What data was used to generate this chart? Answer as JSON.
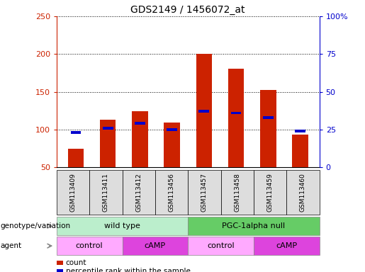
{
  "title": "GDS2149 / 1456072_at",
  "samples": [
    "GSM113409",
    "GSM113411",
    "GSM113412",
    "GSM113456",
    "GSM113457",
    "GSM113458",
    "GSM113459",
    "GSM113460"
  ],
  "count_values": [
    75,
    113,
    124,
    109,
    200,
    181,
    152,
    93
  ],
  "percentile_values": [
    23,
    26,
    29,
    25,
    37,
    36,
    33,
    24
  ],
  "ylim_left": [
    50,
    250
  ],
  "ylim_right": [
    0,
    100
  ],
  "yticks_left": [
    50,
    100,
    150,
    200,
    250
  ],
  "yticks_right": [
    0,
    25,
    50,
    75,
    100
  ],
  "ytick_labels_left": [
    "50",
    "100",
    "150",
    "200",
    "250"
  ],
  "ytick_labels_right": [
    "0",
    "25",
    "50",
    "75",
    "100%"
  ],
  "bar_color": "#cc2200",
  "percentile_color": "#0000cc",
  "background_color": "#ffffff",
  "grid_color": "#000000",
  "genotype_groups": [
    {
      "label": "wild type",
      "start": 0,
      "end": 4,
      "color": "#bbeecc"
    },
    {
      "label": "PGC-1alpha null",
      "start": 4,
      "end": 8,
      "color": "#66cc66"
    }
  ],
  "agent_groups": [
    {
      "label": "control",
      "start": 0,
      "end": 2,
      "color": "#ffaaff"
    },
    {
      "label": "cAMP",
      "start": 2,
      "end": 4,
      "color": "#dd44dd"
    },
    {
      "label": "control",
      "start": 4,
      "end": 6,
      "color": "#ffaaff"
    },
    {
      "label": "cAMP",
      "start": 6,
      "end": 8,
      "color": "#dd44dd"
    }
  ],
  "legend_items": [
    {
      "label": "count",
      "color": "#cc2200"
    },
    {
      "label": "percentile rank within the sample",
      "color": "#0000cc"
    }
  ],
  "label_genotype": "genotype/variation",
  "label_agent": "agent",
  "bar_width": 0.5,
  "tick_label_color_left": "#cc2200",
  "tick_label_color_right": "#0000cc"
}
